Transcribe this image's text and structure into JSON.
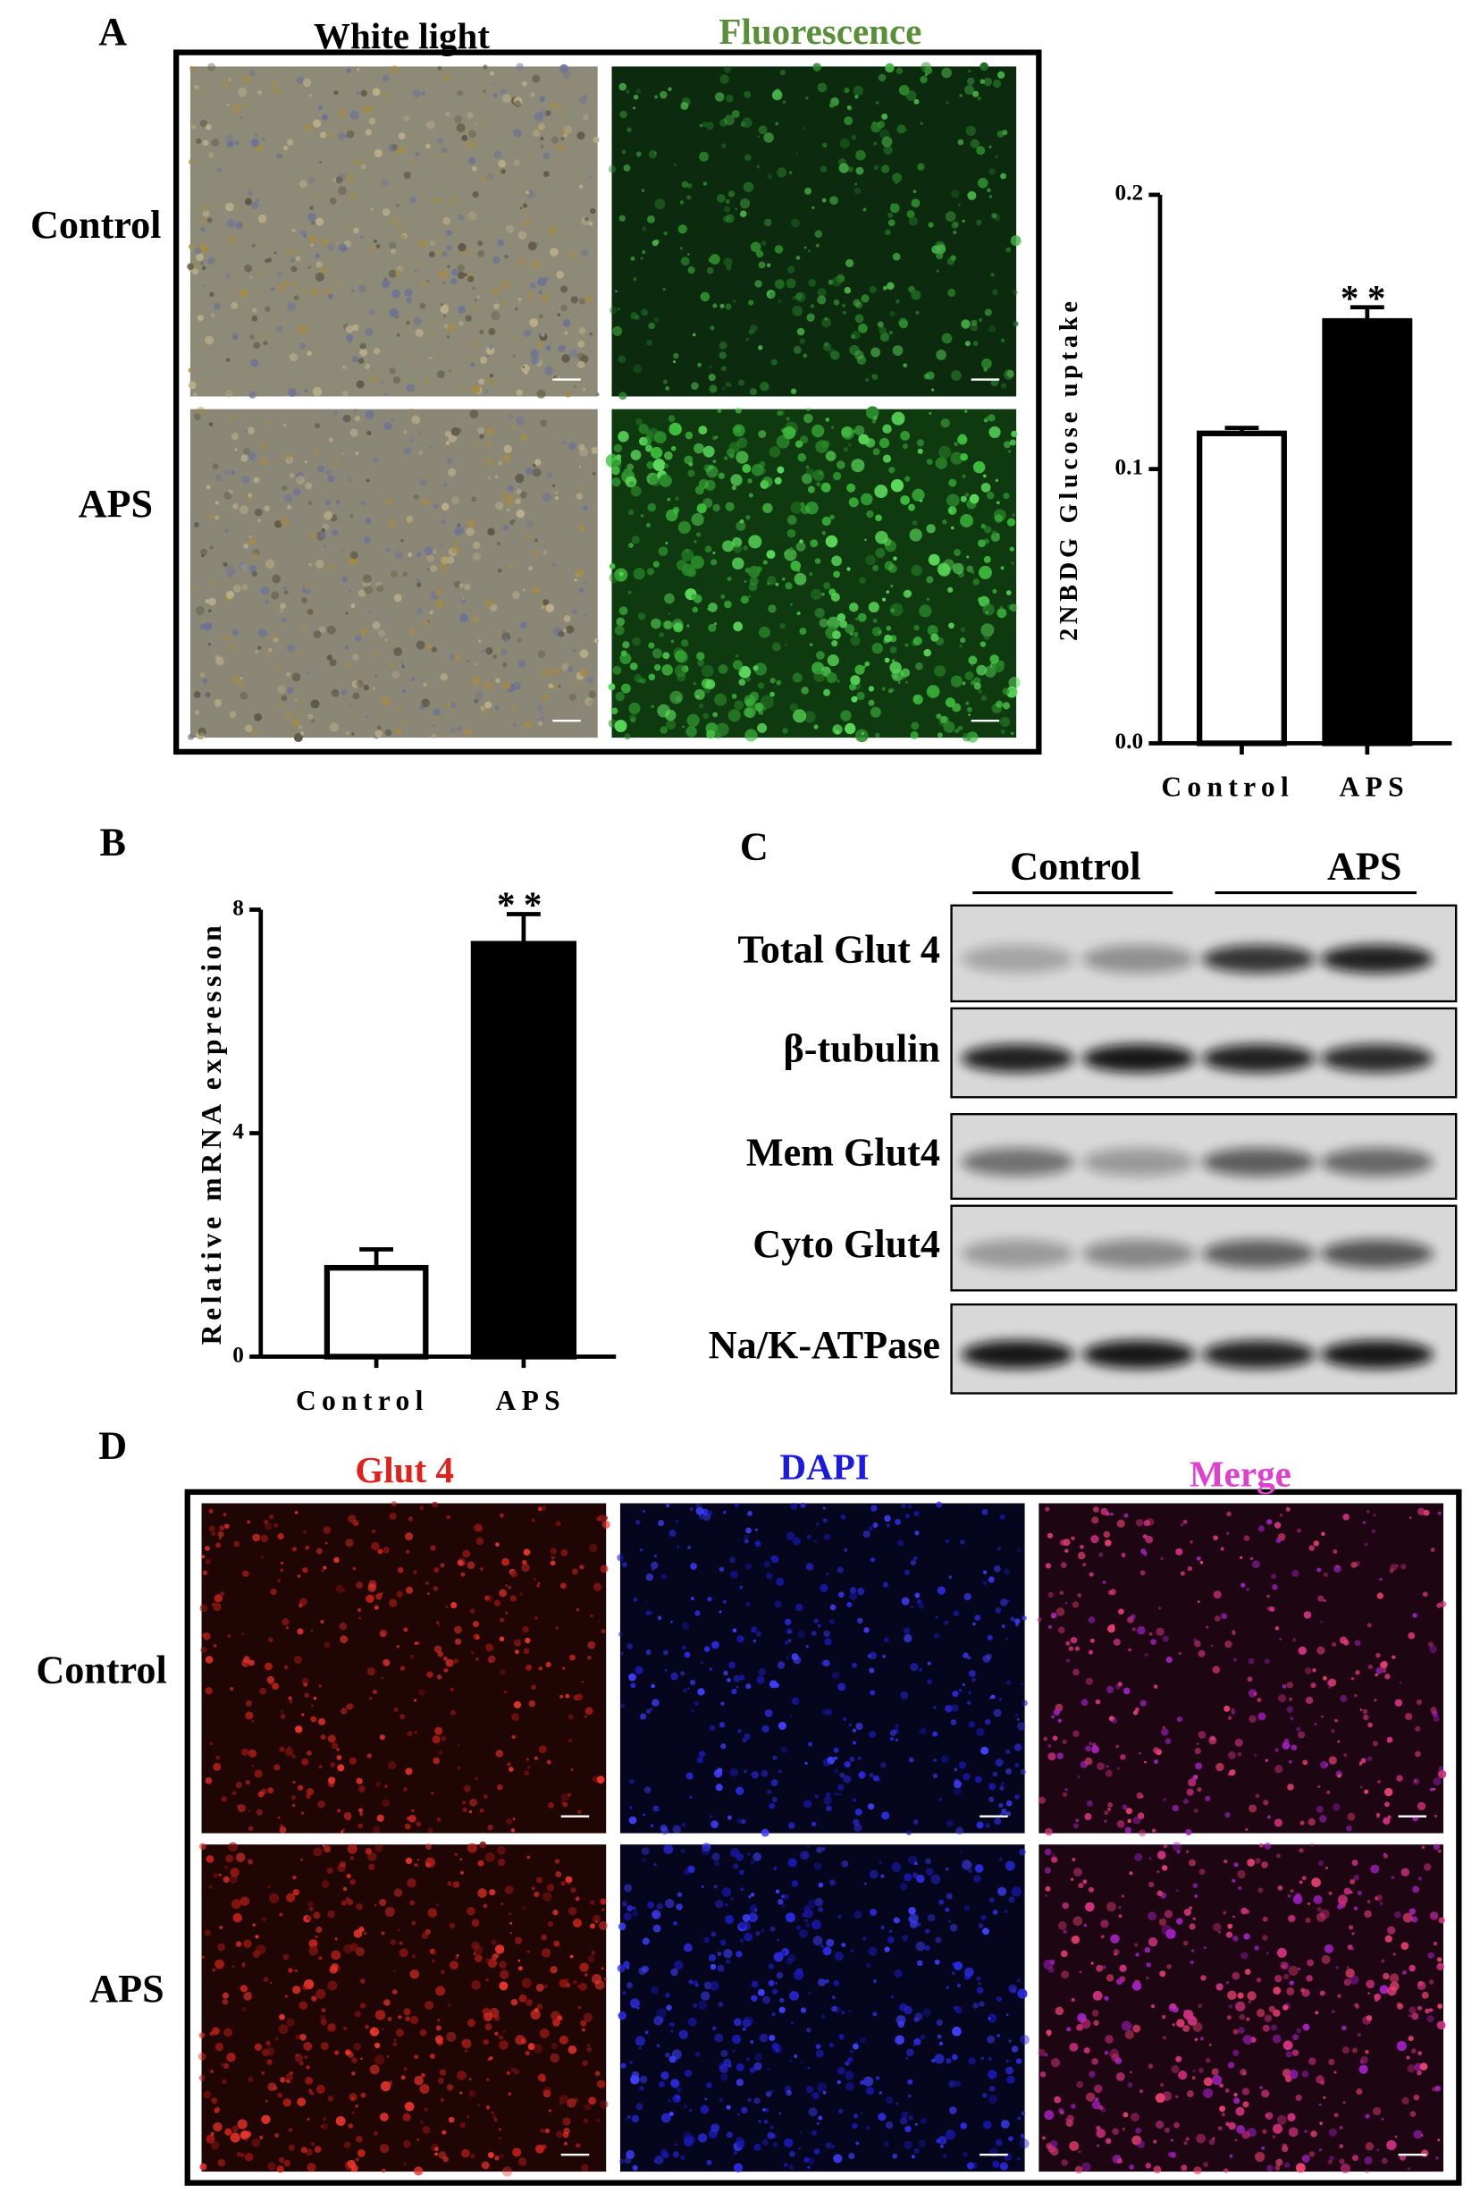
{
  "panel_labels": [
    "A",
    "B",
    "C",
    "D"
  ],
  "panel_a": {
    "columns": [
      "White light",
      "Fluorescence"
    ],
    "rows": [
      "Control",
      "APS"
    ]
  },
  "panel_c": {
    "groups": [
      "Control",
      "APS"
    ],
    "rows": [
      "Total Glut 4",
      "β-tubulin",
      "Mem Glut4",
      "Cyto Glut4",
      "Na/K-ATPase"
    ]
  },
  "panel_d": {
    "columns": [
      "Glut 4",
      "DAPI",
      "Merge"
    ],
    "rows": [
      "Control",
      "APS"
    ]
  },
  "chart_data": [
    {
      "type": "bar",
      "y_label": "2NBDG Glucose uptake",
      "categories": [
        "Control",
        "APS"
      ],
      "values": [
        0.113,
        0.154
      ],
      "errors": [
        0.002,
        0.005
      ],
      "colors": [
        "#ffffff",
        "#000000"
      ],
      "annotation": "**",
      "ylim": [
        0,
        0.2
      ],
      "yticks": [
        {
          "value": 0,
          "label": "0.0"
        },
        0.1,
        0.2
      ]
    },
    {
      "type": "bar",
      "y_label": "Relative mRNA expression",
      "categories": [
        "Control",
        "APS"
      ],
      "values": [
        1.59,
        7.39
      ],
      "errors": [
        0.33,
        0.53
      ],
      "colors": [
        "#ffffff",
        "#000000"
      ],
      "annotation": "**",
      "ylim": [
        0,
        8
      ],
      "yticks": [
        0,
        4,
        8
      ]
    }
  ]
}
